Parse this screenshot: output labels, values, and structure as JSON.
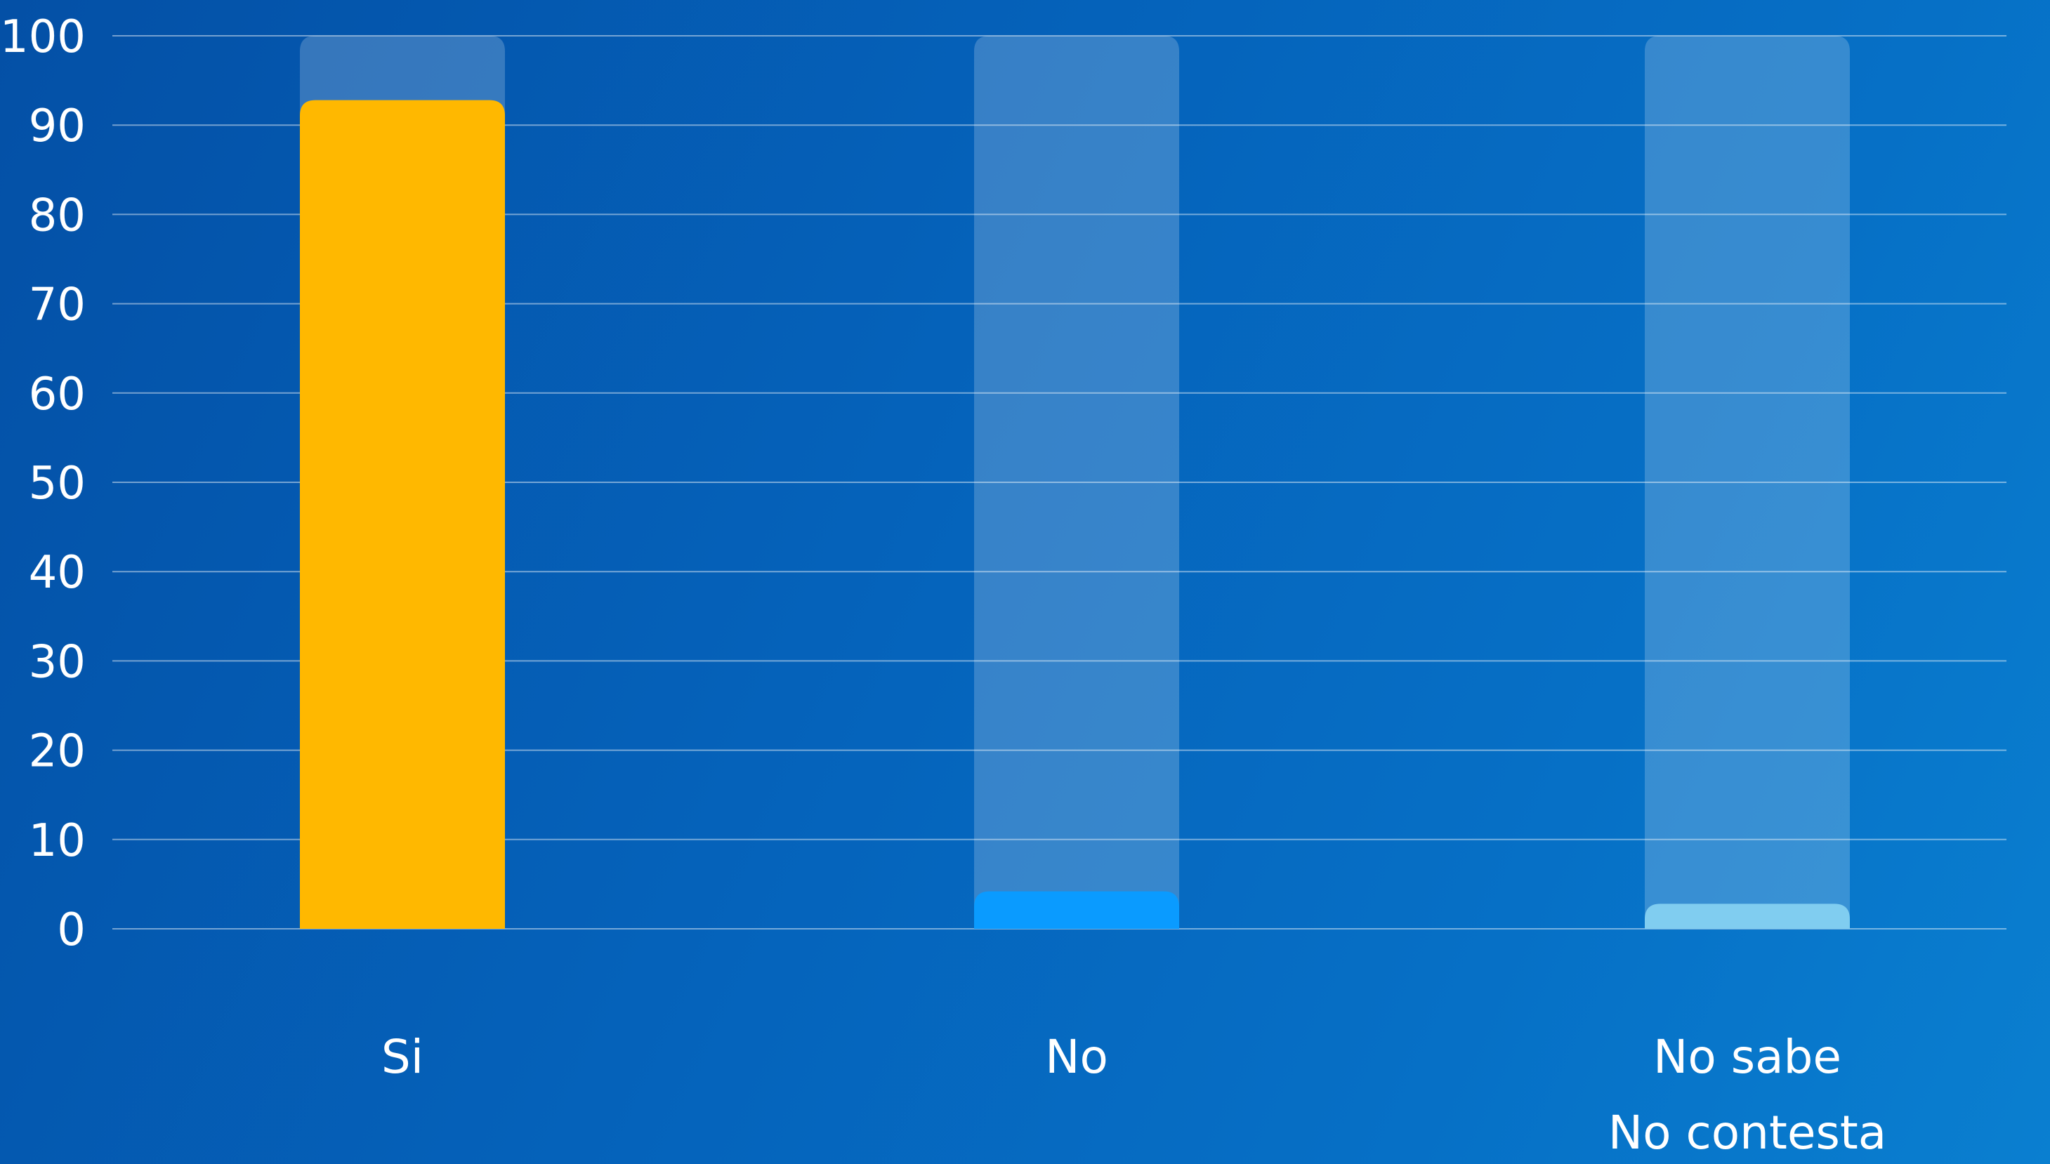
{
  "chart_data": {
    "type": "bar",
    "title": "",
    "xlabel": "",
    "ylabel": "",
    "categories": [
      [
        "Si"
      ],
      [
        "No"
      ],
      [
        "No sabe",
        "No contesta"
      ]
    ],
    "values": [
      92.8,
      4.2,
      2.8
    ],
    "max_track": 100,
    "ylim": [
      0,
      100
    ],
    "yticks": [
      0,
      10,
      20,
      30,
      40,
      50,
      60,
      70,
      80,
      90,
      100
    ],
    "grid": true,
    "legend": "none",
    "colors": {
      "bars": [
        "#ffb800",
        "#0a9bff",
        "#80cdf0"
      ],
      "track": "rgba(255,255,255,0.2)",
      "grid": "rgba(255,255,255,0.45)",
      "text": "#ffffff"
    }
  }
}
